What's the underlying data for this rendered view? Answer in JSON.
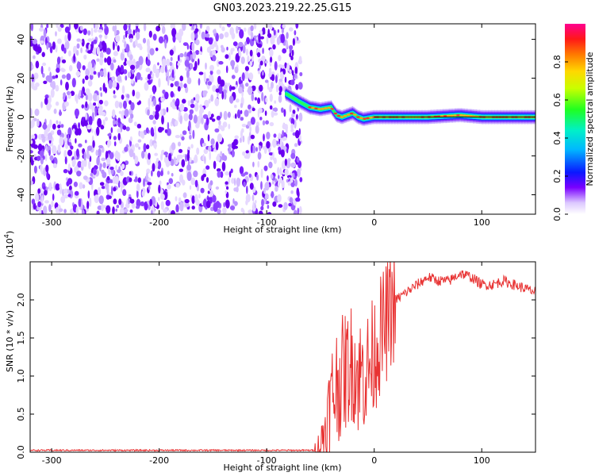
{
  "title": "GN03.2023.219.22.25.G15",
  "colorbar": {
    "label": "Normalized spectral amplitude",
    "ticks": [
      "0.0",
      "0.2",
      "0.4",
      "0.6",
      "0.8"
    ],
    "tick_values": [
      0.0,
      0.2,
      0.4,
      0.6,
      0.8
    ],
    "range": [
      0.0,
      1.0
    ]
  },
  "chart_data": [
    {
      "type": "heatmap",
      "xlabel": "Height of straight line (km)",
      "ylabel": "Frequency (Hz)",
      "xlim": [
        -320,
        150
      ],
      "ylim": [
        -50,
        48
      ],
      "xticks": [
        -300,
        -200,
        -100,
        0,
        100
      ],
      "xtick_labels": [
        "-300",
        "-200",
        "-100",
        "0",
        "100"
      ],
      "yticks": [
        40,
        20,
        0,
        -20,
        -40
      ],
      "ytick_labels": [
        "40",
        "20",
        "0",
        "-20",
        "-40"
      ],
      "noise_region_x": [
        -320,
        -68
      ],
      "ridge": {
        "x": [
          -82,
          -70,
          -60,
          -50,
          -40,
          -35,
          -30,
          -25,
          -20,
          -15,
          -10,
          0,
          20,
          50,
          80,
          100,
          150
        ],
        "frequency": [
          12,
          8,
          5,
          4,
          5,
          1,
          0,
          1,
          2,
          0,
          -1,
          0,
          0,
          0,
          1,
          0,
          0
        ]
      }
    },
    {
      "type": "line",
      "xlabel": "Height of straight line (km)",
      "ylabel": "SNR (10 * v/v)",
      "yscale_label": "(x10",
      "yscale_exp": "4",
      "xlim": [
        -320,
        150
      ],
      "ylim": [
        0,
        2.5
      ],
      "xticks": [
        -300,
        -200,
        -100,
        0,
        100
      ],
      "xtick_labels": [
        "-300",
        "-200",
        "-100",
        "0",
        "100"
      ],
      "yticks": [
        0.0,
        0.5,
        1.0,
        1.5,
        2.0
      ],
      "ytick_labels": [
        "0.0",
        "0.5",
        "1.0",
        "1.5",
        "2.0"
      ],
      "series": [
        {
          "color": "#e83232",
          "x": [
            -320,
            -200,
            -100,
            -55,
            -50,
            -45,
            -40,
            -35,
            -30,
            -25,
            -20,
            -15,
            -10,
            -5,
            0,
            5,
            10,
            15,
            20,
            30,
            40,
            50,
            60,
            70,
            80,
            90,
            100,
            110,
            120,
            130,
            140,
            150
          ],
          "y": [
            0.0,
            0.0,
            0.0,
            0.0,
            0.1,
            0.35,
            0.7,
            0.9,
            1.0,
            1.1,
            1.2,
            1.0,
            1.05,
            1.1,
            1.3,
            1.5,
            1.65,
            1.85,
            2.0,
            2.1,
            2.2,
            2.3,
            2.25,
            2.25,
            2.35,
            2.3,
            2.2,
            2.2,
            2.25,
            2.2,
            2.15,
            2.1
          ]
        }
      ]
    }
  ]
}
